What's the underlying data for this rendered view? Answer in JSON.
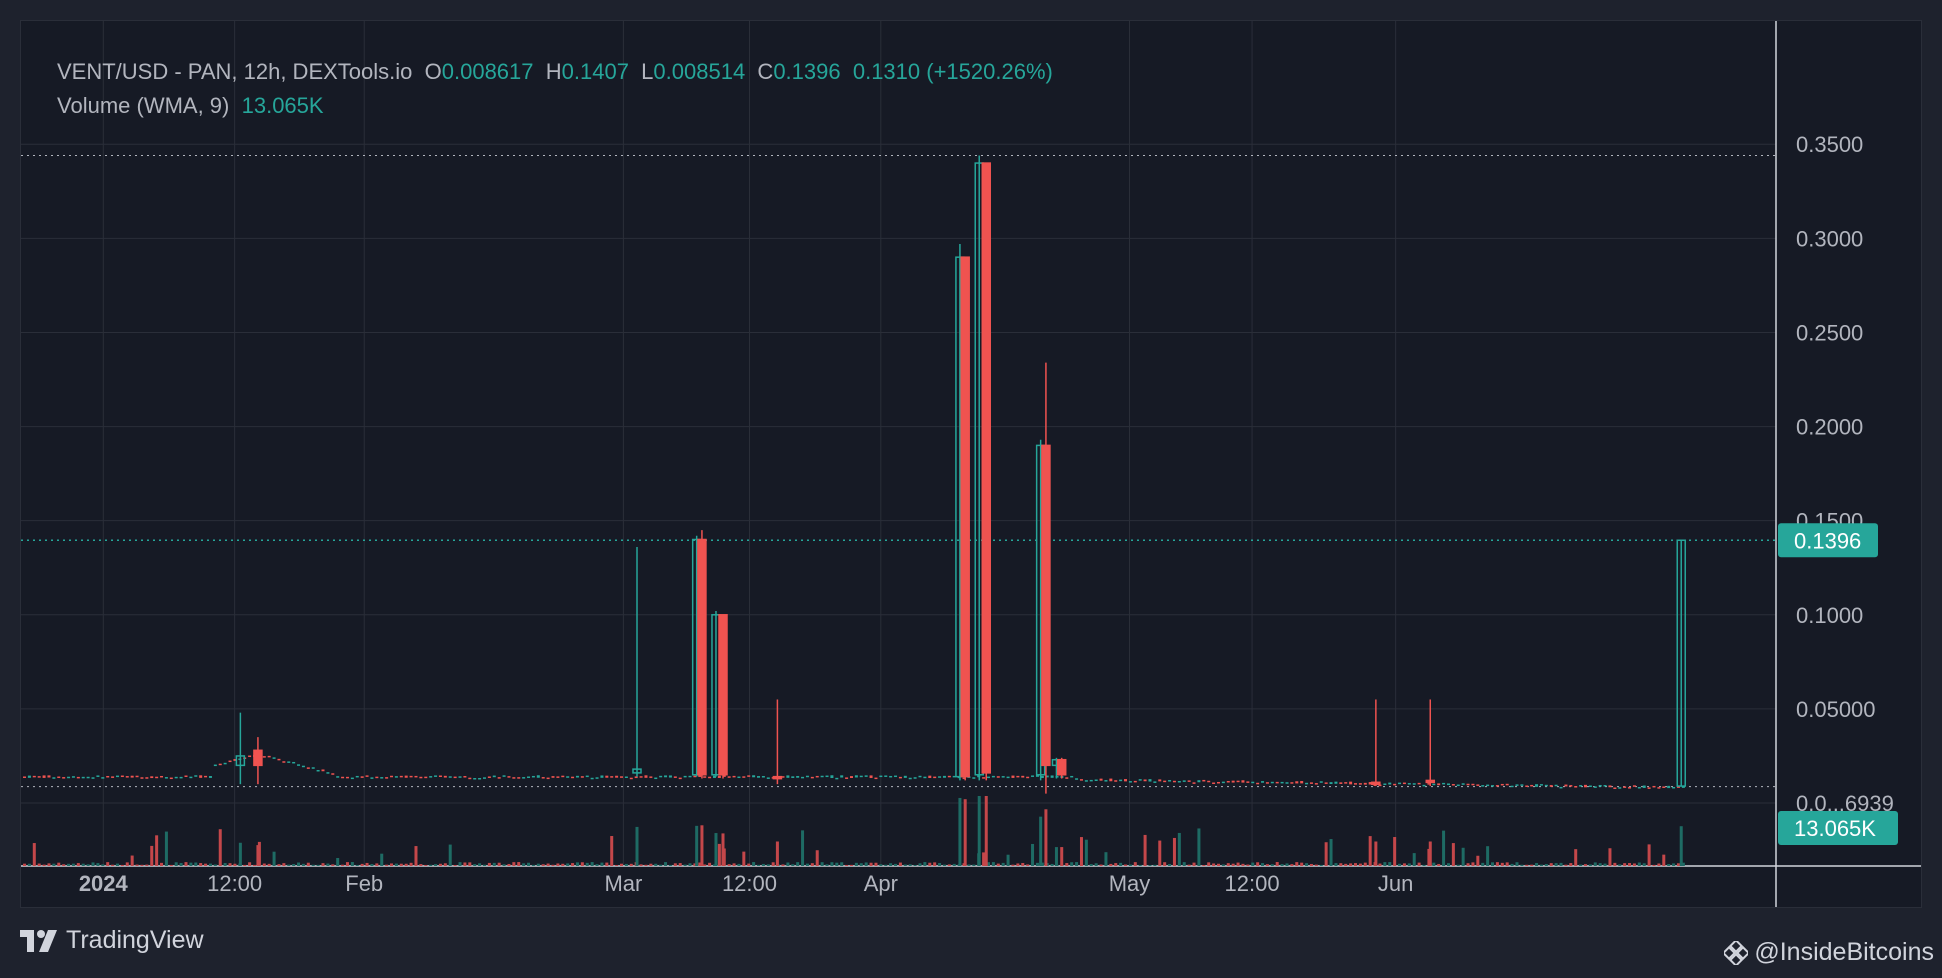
{
  "header": {
    "symbol": "VENT/USD",
    "exchange": " - PAN, 12h, DEXTools.io",
    "o_label": "O",
    "o_value": "0.008617",
    "h_label": "H",
    "h_value": "0.1407",
    "l_label": "L",
    "l_value": "0.008514",
    "c_label": "C",
    "c_value": "0.1396",
    "change": "0.1310 (+1520.26%)",
    "volume_label": "Volume (WMA, 9)",
    "volume_value": "13.065K"
  },
  "footer": {
    "brand": "TradingView",
    "watermark": "@InsideBitcoins"
  },
  "colors": {
    "up": "#26a69a",
    "down": "#ef5350",
    "background": "#161a25",
    "grid": "#2a2e39",
    "text": "#b2b5be"
  },
  "chart_data": {
    "type": "candlestick",
    "title": "VENT/USD - PAN, 12h, DEXTools.io",
    "y_ticks": [
      "0.3500",
      "0.3000",
      "0.2500",
      "0.2000",
      "0.1500",
      "0.1000",
      "0.05000",
      "0.0...6939"
    ],
    "ylim": [
      0,
      0.37
    ],
    "x_ticks": [
      "2024",
      "12:00",
      "Feb",
      "Mar",
      "12:00",
      "Apr",
      "May",
      "12:00",
      "Jun"
    ],
    "last_price_label": "0.1396",
    "last_price": 0.1396,
    "high_line": 0.344,
    "low_line": 0.0087,
    "volume_label": "13.065K",
    "baseline_price": 0.014,
    "spikes": [
      {
        "x": 0.125,
        "o": 0.02,
        "h": 0.048,
        "l": 0.01,
        "c": 0.025,
        "up": true
      },
      {
        "x": 0.135,
        "o": 0.028,
        "h": 0.035,
        "l": 0.01,
        "c": 0.02,
        "up": false
      },
      {
        "x": 0.351,
        "o": 0.016,
        "h": 0.136,
        "l": 0.014,
        "c": 0.018,
        "up": true
      },
      {
        "x": 0.385,
        "o": 0.015,
        "h": 0.142,
        "l": 0.014,
        "c": 0.14,
        "up": true
      },
      {
        "x": 0.388,
        "o": 0.14,
        "h": 0.145,
        "l": 0.013,
        "c": 0.015,
        "up": false
      },
      {
        "x": 0.396,
        "o": 0.015,
        "h": 0.102,
        "l": 0.014,
        "c": 0.1,
        "up": true
      },
      {
        "x": 0.4,
        "o": 0.1,
        "h": 0.1,
        "l": 0.013,
        "c": 0.015,
        "up": false
      },
      {
        "x": 0.535,
        "o": 0.014,
        "h": 0.297,
        "l": 0.012,
        "c": 0.29,
        "up": true
      },
      {
        "x": 0.538,
        "o": 0.29,
        "h": 0.29,
        "l": 0.012,
        "c": 0.014,
        "up": false
      },
      {
        "x": 0.546,
        "o": 0.015,
        "h": 0.344,
        "l": 0.012,
        "c": 0.34,
        "up": true
      },
      {
        "x": 0.55,
        "o": 0.34,
        "h": 0.34,
        "l": 0.012,
        "c": 0.016,
        "up": false
      },
      {
        "x": 0.581,
        "o": 0.015,
        "h": 0.193,
        "l": 0.012,
        "c": 0.19,
        "up": true
      },
      {
        "x": 0.584,
        "o": 0.19,
        "h": 0.234,
        "l": 0.005,
        "c": 0.02,
        "up": false
      },
      {
        "x": 0.59,
        "o": 0.02,
        "h": 0.024,
        "l": 0.013,
        "c": 0.023,
        "up": true
      },
      {
        "x": 0.593,
        "o": 0.023,
        "h": 0.024,
        "l": 0.013,
        "c": 0.015,
        "up": false
      },
      {
        "x": 0.431,
        "o": 0.014,
        "h": 0.055,
        "l": 0.01,
        "c": 0.013,
        "up": false
      },
      {
        "x": 0.772,
        "o": 0.011,
        "h": 0.055,
        "l": 0.009,
        "c": 0.01,
        "up": false
      },
      {
        "x": 0.803,
        "o": 0.012,
        "h": 0.055,
        "l": 0.009,
        "c": 0.011,
        "up": false
      },
      {
        "x": 0.946,
        "o": 0.009,
        "h": 0.14,
        "l": 0.009,
        "c": 0.1396,
        "up": true
      }
    ]
  }
}
